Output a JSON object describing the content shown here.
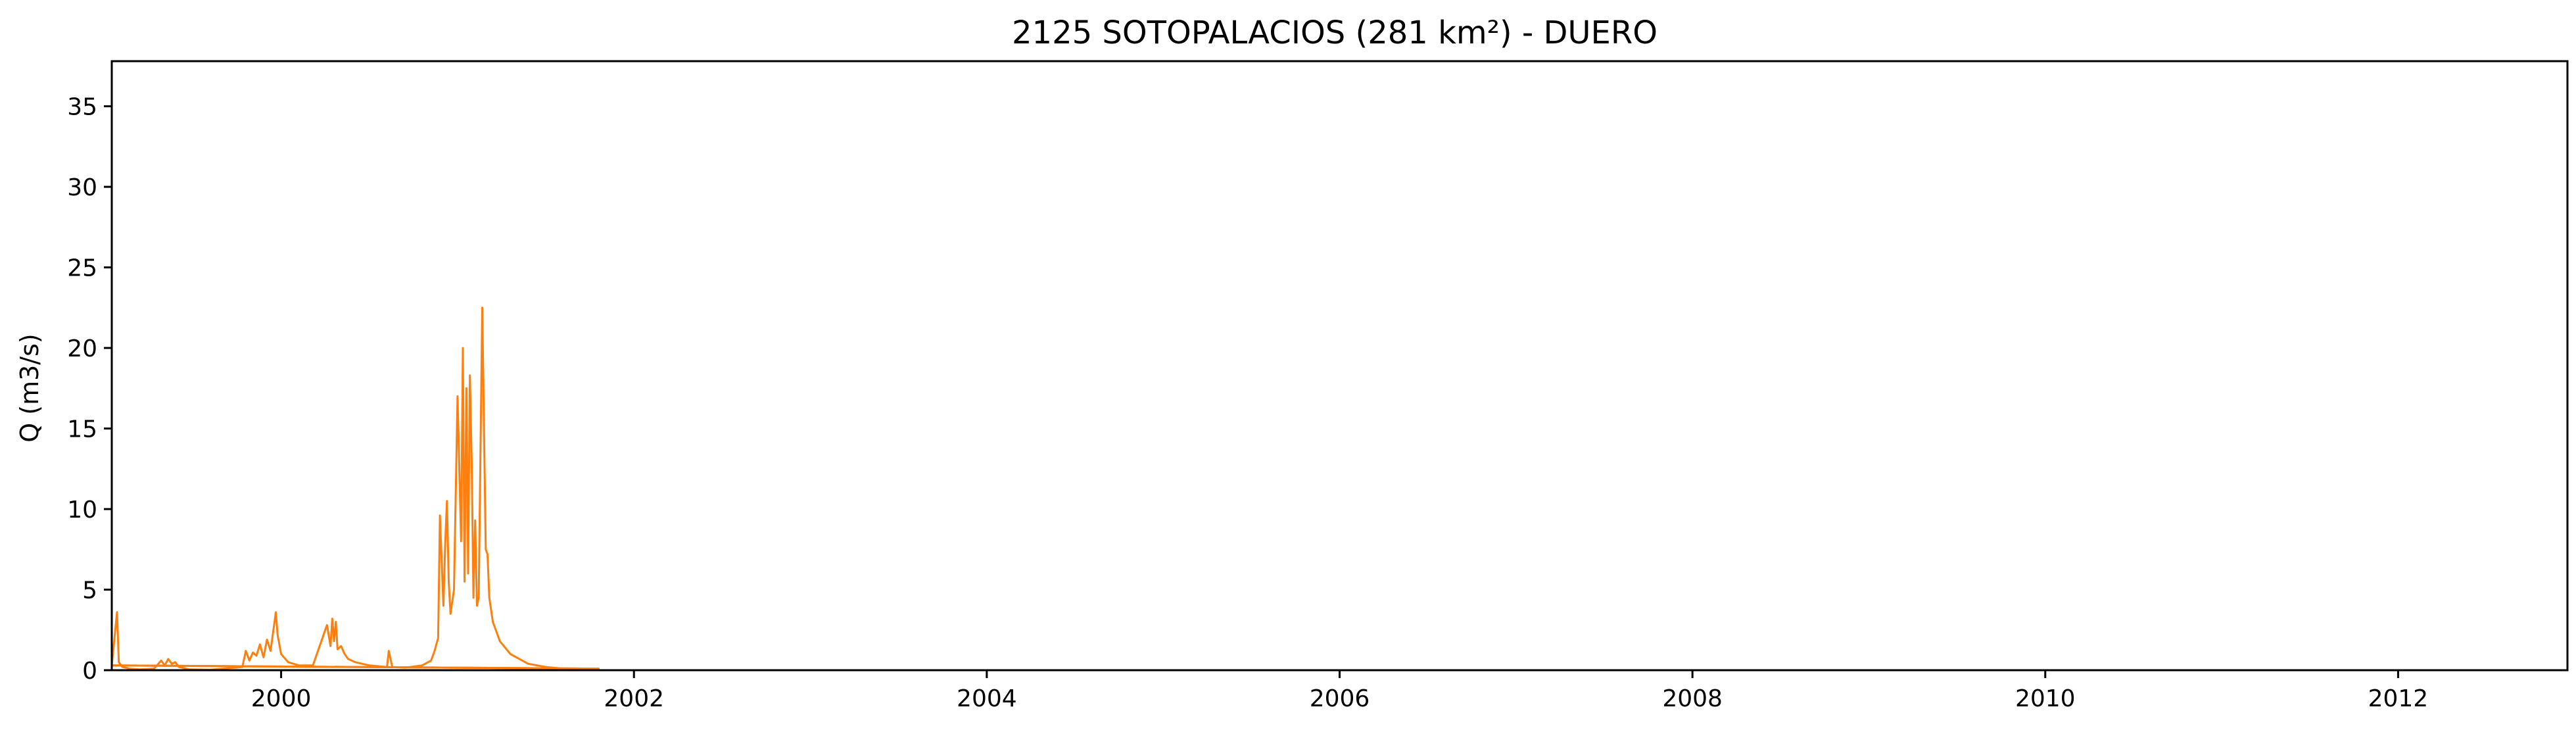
{
  "chart_data": {
    "type": "line",
    "title": "2125 SOTOPALACIOS (281 km²) - DUERO",
    "xlabel": "",
    "ylabel": "Q (m3/s)",
    "xlim": [
      1999.04,
      2012.96
    ],
    "ylim": [
      0,
      37.8
    ],
    "x_ticks": [
      2000,
      2002,
      2004,
      2006,
      2008,
      2010,
      2012
    ],
    "x_tick_labels": [
      "2000",
      "2002",
      "2004",
      "2006",
      "2008",
      "2010",
      "2012"
    ],
    "y_ticks": [
      0,
      5,
      10,
      15,
      20,
      25,
      30,
      35
    ],
    "y_tick_labels": [
      "0",
      "5",
      "10",
      "15",
      "20",
      "25",
      "30",
      "35"
    ],
    "grid": false,
    "series": [
      {
        "color": "#ff7f0e",
        "x": [
          1999.04,
          1999.07,
          1999.08,
          1999.1,
          1999.14,
          1999.2,
          1999.28,
          1999.32,
          1999.34,
          1999.36,
          1999.38,
          1999.4,
          1999.42,
          1999.48,
          1999.6,
          1999.78,
          1999.8,
          1999.82,
          1999.84,
          1999.86,
          1999.88,
          1999.9,
          1999.92,
          1999.94,
          1999.96,
          1999.97,
          1999.98,
          2000.0,
          2000.04,
          2000.1,
          2000.18,
          2000.26,
          2000.28,
          2000.29,
          2000.3,
          2000.31,
          2000.32,
          2000.34,
          2000.36,
          2000.38,
          2000.42,
          2000.5,
          2000.6,
          2000.61,
          2000.63,
          2000.7,
          2000.8,
          2000.85,
          2000.87,
          2000.89,
          2000.9,
          2000.92,
          2000.93,
          2000.94,
          2000.95,
          2000.96,
          2000.98,
          2001.0,
          2001.02,
          2001.03,
          2001.04,
          2001.05,
          2001.06,
          2001.07,
          2001.08,
          2001.09,
          2001.1,
          2001.11,
          2001.12,
          2001.14,
          2001.16,
          2001.17,
          2001.18,
          2001.2,
          2001.24,
          2001.3,
          2001.4,
          2001.5,
          2001.6,
          2001.8,
          1999.04
        ],
        "y": [
          0.3,
          3.6,
          0.5,
          0.2,
          0.1,
          0.05,
          0.1,
          0.6,
          0.3,
          0.7,
          0.4,
          0.5,
          0.2,
          0.05,
          0.03,
          0.2,
          1.2,
          0.6,
          1.1,
          0.9,
          1.6,
          0.8,
          1.9,
          1.2,
          2.8,
          3.6,
          2.2,
          1.0,
          0.5,
          0.3,
          0.3,
          2.8,
          1.5,
          3.2,
          1.8,
          3.0,
          1.3,
          1.5,
          1.0,
          0.7,
          0.5,
          0.3,
          0.2,
          1.2,
          0.2,
          0.15,
          0.3,
          0.6,
          1.2,
          2.0,
          9.6,
          4.0,
          7.8,
          10.5,
          5.5,
          3.5,
          5.0,
          17.0,
          8.0,
          20.0,
          5.5,
          17.5,
          6.0,
          18.3,
          13.0,
          4.5,
          9.3,
          4.0,
          4.5,
          22.5,
          7.5,
          7.2,
          4.5,
          3.0,
          1.8,
          1.0,
          0.4,
          0.2,
          0.1,
          0.1,
          0.3
        ]
      },
      {
        "color": "#ff7f0e",
        "x": [
          2001.8,
          1999.04
        ],
        "y": [
          0.1,
          0.3
        ]
      },
      {
        "color": "#ff7f0e",
        "x": [
          2001.8,
          1999.04
        ],
        "y": [
          0.1,
          0.3
        ]
      }
    ]
  }
}
